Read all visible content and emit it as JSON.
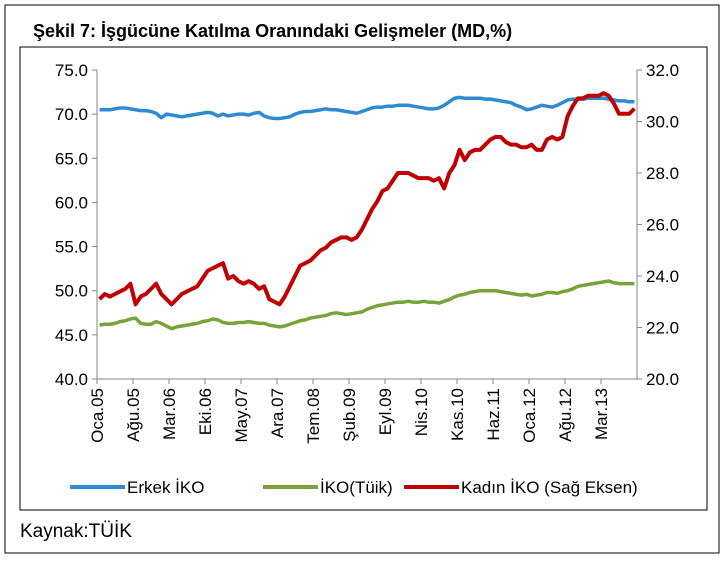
{
  "chart_data": {
    "type": "line",
    "title": "Şekil 7: İşgücüne Katılma Oranındaki Gelişmeler (MD,%)",
    "source": "Kaynak:TÜİK",
    "categories": [
      "Oca.05",
      null,
      null,
      null,
      null,
      null,
      null,
      "Ağu.05",
      null,
      null,
      null,
      null,
      null,
      null,
      "Mar.06",
      null,
      null,
      null,
      null,
      null,
      null,
      "Eki.06",
      null,
      null,
      null,
      null,
      null,
      null,
      "May.07",
      null,
      null,
      null,
      null,
      null,
      null,
      "Ara.07",
      null,
      null,
      null,
      null,
      null,
      null,
      "Tem.08",
      null,
      null,
      null,
      null,
      null,
      null,
      "Şub.09",
      null,
      null,
      null,
      null,
      null,
      null,
      "Eyl.09",
      null,
      null,
      null,
      null,
      null,
      null,
      "Nis.10",
      null,
      null,
      null,
      null,
      null,
      null,
      "Kas.10",
      null,
      null,
      null,
      null,
      null,
      null,
      "Haz.11",
      null,
      null,
      null,
      null,
      null,
      null,
      "Oca.12",
      null,
      null,
      null,
      null,
      null,
      null,
      "Ağu.12",
      null,
      null,
      null,
      null,
      null,
      null,
      "Mar.13",
      null,
      null,
      null,
      null,
      null,
      null
    ],
    "series": [
      {
        "name": "Erkek İKO",
        "color": "#2e8bd0",
        "values": [
          70.5,
          70.5,
          70.5,
          70.6,
          70.7,
          70.7,
          70.6,
          70.5,
          70.4,
          70.4,
          70.3,
          70.1,
          69.6,
          70.0,
          69.9,
          69.8,
          69.7,
          69.8,
          69.9,
          70.0,
          70.1,
          70.2,
          70.1,
          69.8,
          70.0,
          69.8,
          69.9,
          70.0,
          70.0,
          69.9,
          70.1,
          70.2,
          69.8,
          69.6,
          69.5,
          69.5,
          69.6,
          69.7,
          70.0,
          70.2,
          70.3,
          70.3,
          70.4,
          70.5,
          70.6,
          70.5,
          70.5,
          70.4,
          70.3,
          70.2,
          70.1,
          70.3,
          70.5,
          70.7,
          70.8,
          70.8,
          70.9,
          70.9,
          71.0,
          71.0,
          71.0,
          70.9,
          70.8,
          70.7,
          70.6,
          70.6,
          70.7,
          71.0,
          71.4,
          71.8,
          71.9,
          71.8,
          71.8,
          71.8,
          71.8,
          71.7,
          71.7,
          71.6,
          71.5,
          71.4,
          71.3,
          71.0,
          70.8,
          70.5,
          70.6,
          70.8,
          71.0,
          70.9,
          70.8,
          71.0,
          71.3,
          71.6,
          71.7,
          71.7,
          71.7,
          71.8,
          71.8,
          71.8,
          71.8,
          71.7,
          71.6,
          71.5,
          71.5,
          71.4,
          71.4
        ]
      },
      {
        "name": "İKO(Tüik)",
        "color": "#77a33a",
        "values": [
          46.1,
          46.2,
          46.2,
          46.3,
          46.5,
          46.6,
          46.8,
          46.9,
          46.3,
          46.2,
          46.2,
          46.5,
          46.3,
          46.0,
          45.7,
          45.9,
          46.0,
          46.1,
          46.2,
          46.3,
          46.5,
          46.6,
          46.8,
          46.7,
          46.4,
          46.3,
          46.3,
          46.4,
          46.4,
          46.5,
          46.4,
          46.3,
          46.3,
          46.1,
          46.0,
          45.9,
          46.0,
          46.2,
          46.4,
          46.6,
          46.7,
          46.9,
          47.0,
          47.1,
          47.2,
          47.4,
          47.5,
          47.4,
          47.3,
          47.4,
          47.5,
          47.6,
          47.9,
          48.1,
          48.3,
          48.4,
          48.5,
          48.6,
          48.7,
          48.7,
          48.8,
          48.7,
          48.7,
          48.8,
          48.7,
          48.7,
          48.6,
          48.8,
          49.0,
          49.3,
          49.5,
          49.6,
          49.8,
          49.9,
          50.0,
          50.0,
          50.0,
          50.0,
          49.9,
          49.8,
          49.7,
          49.6,
          49.5,
          49.6,
          49.4,
          49.5,
          49.6,
          49.8,
          49.8,
          49.7,
          49.9,
          50.0,
          50.2,
          50.5,
          50.6,
          50.7,
          50.8,
          50.9,
          51.0,
          51.1,
          50.9,
          50.8,
          50.8,
          50.8,
          50.8
        ]
      },
      {
        "name": "Kadın İKO (Sağ Eksen)",
        "color": "#c00000",
        "axis": "y2",
        "values": [
          23.1,
          23.3,
          23.2,
          23.3,
          23.4,
          23.5,
          23.7,
          22.9,
          23.2,
          23.3,
          23.5,
          23.7,
          23.3,
          23.1,
          22.9,
          23.1,
          23.3,
          23.4,
          23.5,
          23.6,
          23.9,
          24.2,
          24.3,
          24.4,
          24.5,
          23.9,
          24.0,
          23.8,
          23.7,
          23.8,
          23.7,
          23.5,
          23.6,
          23.1,
          23.0,
          22.9,
          23.2,
          23.6,
          24.0,
          24.4,
          24.5,
          24.6,
          24.8,
          25.0,
          25.1,
          25.3,
          25.4,
          25.5,
          25.5,
          25.4,
          25.5,
          25.8,
          26.2,
          26.6,
          26.9,
          27.3,
          27.4,
          27.7,
          28.0,
          28.0,
          28.0,
          27.9,
          27.8,
          27.8,
          27.8,
          27.7,
          27.8,
          27.4,
          28.0,
          28.3,
          28.9,
          28.5,
          28.8,
          28.9,
          28.9,
          29.1,
          29.3,
          29.4,
          29.4,
          29.2,
          29.1,
          29.1,
          29.0,
          29.0,
          29.1,
          28.9,
          28.9,
          29.3,
          29.4,
          29.3,
          29.4,
          30.2,
          30.6,
          30.9,
          30.9,
          31.0,
          31.0,
          31.0,
          31.1,
          31.0,
          30.7,
          30.3,
          30.3,
          30.3,
          30.5
        ]
      }
    ],
    "ylim": [
      40,
      75
    ],
    "yticks": [
      {
        "value": 40,
        "label": "40.0"
      },
      {
        "value": 45,
        "label": "45.0"
      },
      {
        "value": 50,
        "label": "50.0"
      },
      {
        "value": 55,
        "label": "55.0"
      },
      {
        "value": 60,
        "label": "60.0"
      },
      {
        "value": 65,
        "label": "65.0"
      },
      {
        "value": 70,
        "label": "70.0"
      },
      {
        "value": 75,
        "label": "75.0"
      }
    ],
    "y2lim": [
      20,
      32
    ],
    "y2ticks": [
      {
        "value": 20,
        "label": "20.0"
      },
      {
        "value": 22,
        "label": "22.0"
      },
      {
        "value": 24,
        "label": "24.0"
      },
      {
        "value": 26,
        "label": "26.0"
      },
      {
        "value": 28,
        "label": "28.0"
      },
      {
        "value": 30,
        "label": "30.0"
      },
      {
        "value": 32,
        "label": "32.0"
      }
    ],
    "grid": false,
    "legend": "bottom"
  }
}
